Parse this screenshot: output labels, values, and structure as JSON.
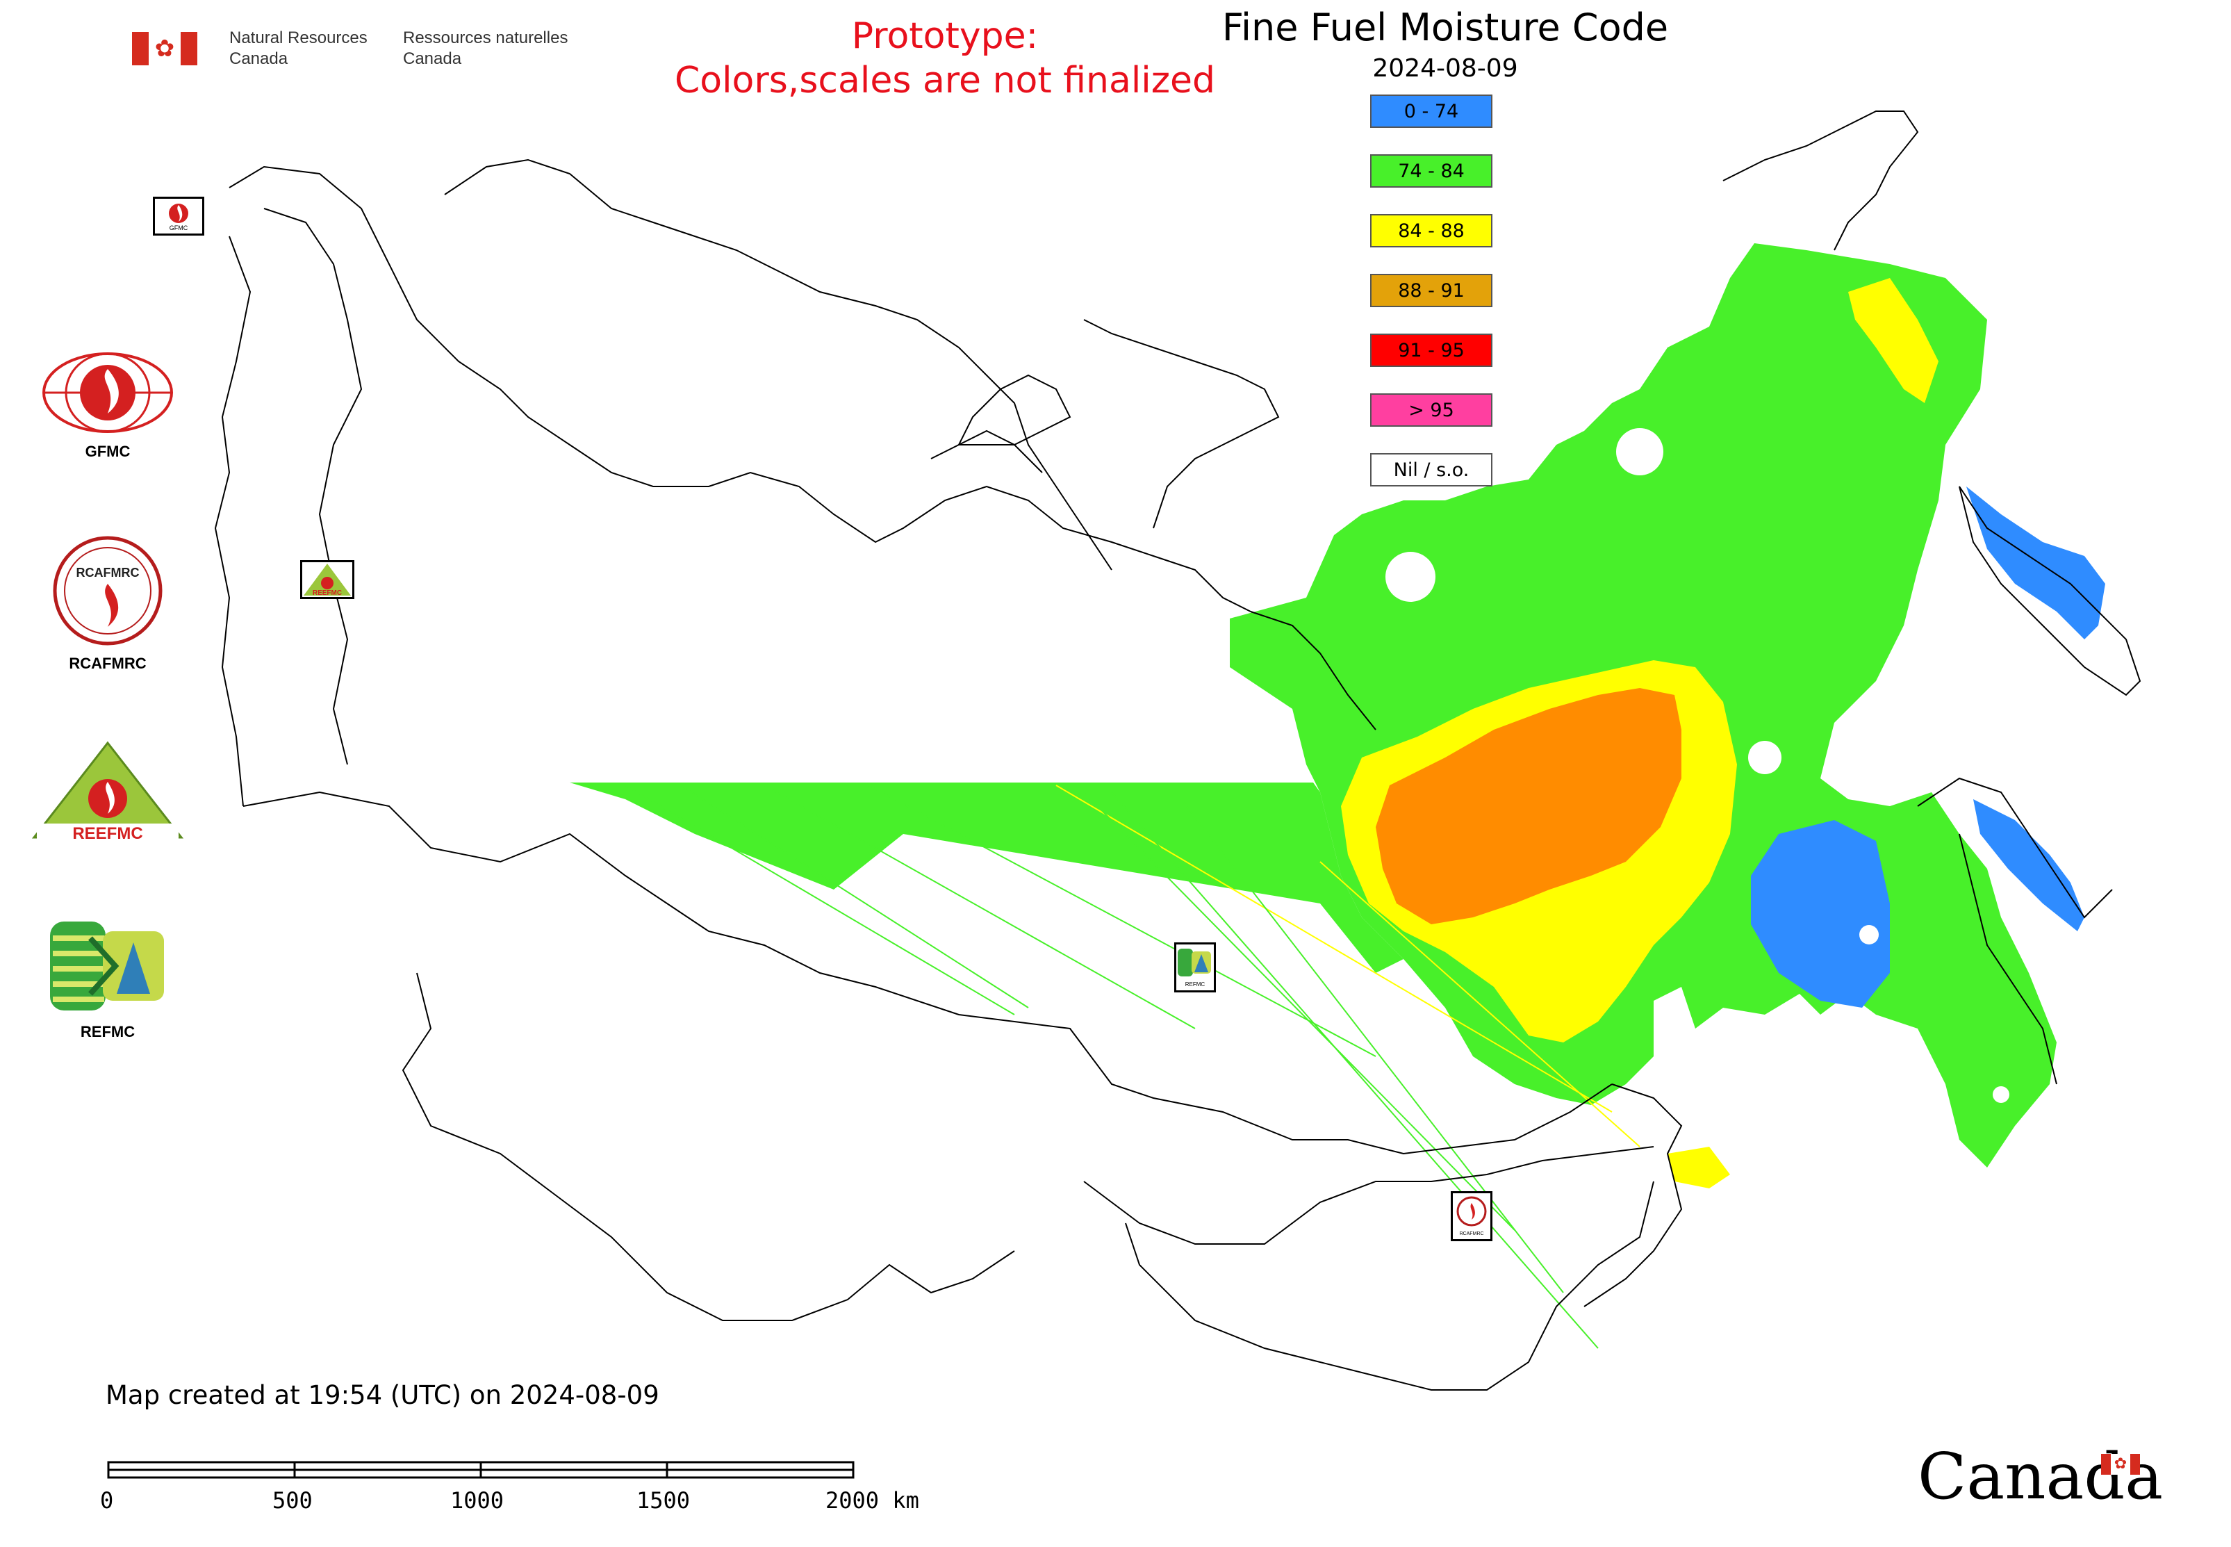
{
  "header": {
    "department_en_line1": "Natural Resources",
    "department_en_line2": "Canada",
    "department_fr_line1": "Ressources naturelles",
    "department_fr_line2": "Canada",
    "prototype_line1": "Prototype:",
    "prototype_line2": "Colors,scales are not finalized"
  },
  "map": {
    "title": "Fine Fuel Moisture Code",
    "date": "2024-08-09",
    "created_note": "Map created at 19:54 (UTC) on 2024-08-09"
  },
  "legend": {
    "items": [
      {
        "label": "0 - 74",
        "color": "#2f8cff"
      },
      {
        "label": "74 - 84",
        "color": "#48f02a"
      },
      {
        "label": "84 - 88",
        "color": "#ffff00"
      },
      {
        "label": "88 - 91",
        "color": "#e3a20a"
      },
      {
        "label": "91 - 95",
        "color": "#ff0000"
      },
      {
        "label": "> 95",
        "color": "#ff3fa0"
      },
      {
        "label": "Nil / s.o.",
        "color": "#ffffff"
      }
    ]
  },
  "colors": {
    "title_red": "#e8101c",
    "orange_area": "#ff8c00",
    "boundary": "#000000"
  },
  "org_logos": [
    {
      "label": "GFMC",
      "icon": "gfmc-logo-icon"
    },
    {
      "label": "RCAFMRC",
      "icon": "rcafmrc-logo-icon",
      "inner_text": "RCAFMRC"
    },
    {
      "label": "REEFMC",
      "icon": "reefmc-logo-icon",
      "inner_text": "REEFMC"
    },
    {
      "label": "REFMC",
      "icon": "refmc-logo-icon"
    }
  ],
  "map_markers": [
    {
      "name": "gfmc",
      "text": "GFMC"
    },
    {
      "name": "reefmc",
      "text": "REEFMC"
    },
    {
      "name": "refmc",
      "text": "REFMC"
    },
    {
      "name": "rcafmrc",
      "text": "RCAFMRC"
    }
  ],
  "scale_bar": {
    "ticks": [
      "0",
      "500",
      "1000",
      "1500",
      "2000 km"
    ]
  },
  "wordmark": {
    "text": "Canada"
  }
}
